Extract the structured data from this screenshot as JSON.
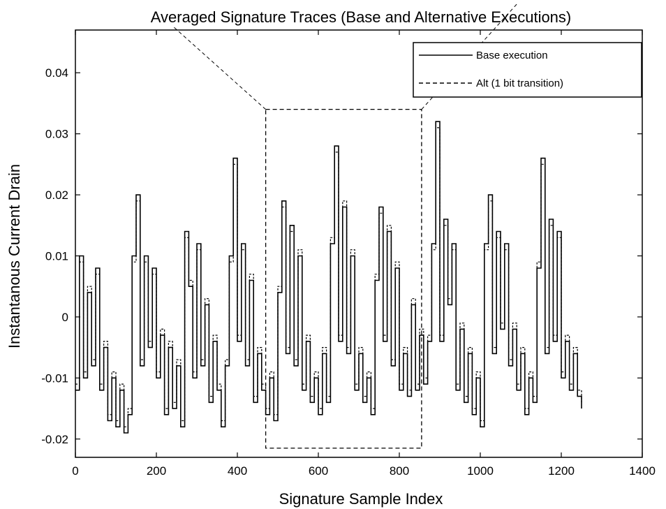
{
  "chart_data": {
    "type": "line",
    "title": "Averaged Signature Traces (Base and Alternative Executions)",
    "xlabel": "Signature Sample Index",
    "ylabel": "Instantanous Current Drain",
    "xlim": [
      0,
      1400
    ],
    "ylim": [
      -0.023,
      0.047
    ],
    "xticks": [
      0,
      200,
      400,
      600,
      800,
      1000,
      1200,
      1400
    ],
    "xtick_labels": [
      "0",
      "200",
      "400",
      "600",
      "800",
      "1000",
      "1200",
      "1400"
    ],
    "yticks": [
      -0.02,
      -0.01,
      0,
      0.01,
      0.02,
      0.03,
      0.04
    ],
    "ytick_labels": [
      "-0.02",
      "-0.01",
      "0",
      "0.01",
      "0.02",
      "0.03",
      "0.04"
    ],
    "grid": false,
    "legend_position": "top-right",
    "highlight_box": {
      "x": [
        470,
        855
      ],
      "y": [
        -0.0215,
        0.034
      ]
    },
    "series": [
      {
        "name": "Base execution",
        "style": "solid",
        "x": [
          0,
          10,
          20,
          30,
          40,
          50,
          60,
          70,
          80,
          90,
          100,
          110,
          120,
          130,
          140,
          150,
          160,
          170,
          180,
          190,
          200,
          210,
          220,
          230,
          240,
          250,
          260,
          270,
          280,
          290,
          300,
          310,
          320,
          330,
          340,
          350,
          360,
          370,
          380,
          390,
          400,
          410,
          420,
          430,
          440,
          450,
          460,
          470,
          480,
          490,
          500,
          510,
          520,
          530,
          540,
          550,
          560,
          570,
          580,
          590,
          600,
          610,
          620,
          630,
          640,
          650,
          660,
          670,
          680,
          690,
          700,
          710,
          720,
          730,
          740,
          750,
          760,
          770,
          780,
          790,
          800,
          810,
          820,
          830,
          840,
          850,
          860,
          870,
          880,
          890,
          900,
          910,
          920,
          930,
          940,
          950,
          960,
          970,
          980,
          990,
          1000,
          1010,
          1020,
          1030,
          1040,
          1050,
          1060,
          1070,
          1080,
          1090,
          1100,
          1110,
          1120,
          1130,
          1140,
          1150,
          1160,
          1170,
          1180,
          1190,
          1200,
          1210,
          1220,
          1230,
          1240,
          1250
        ],
        "values": [
          -0.012,
          0.01,
          -0.01,
          0.004,
          -0.008,
          0.008,
          -0.012,
          -0.005,
          -0.017,
          -0.01,
          -0.018,
          -0.012,
          -0.019,
          -0.016,
          0.01,
          0.02,
          -0.008,
          0.01,
          -0.005,
          0.008,
          -0.01,
          -0.003,
          -0.016,
          -0.005,
          -0.015,
          -0.008,
          -0.018,
          0.014,
          0.005,
          -0.01,
          0.012,
          -0.008,
          0.002,
          -0.014,
          -0.004,
          -0.012,
          -0.018,
          -0.008,
          0.01,
          0.026,
          -0.004,
          0.012,
          -0.008,
          0.006,
          -0.014,
          -0.006,
          -0.012,
          -0.016,
          -0.01,
          -0.017,
          0.004,
          0.019,
          -0.006,
          0.015,
          -0.008,
          0.01,
          -0.012,
          -0.004,
          -0.014,
          -0.01,
          -0.016,
          -0.006,
          -0.014,
          0.012,
          0.028,
          -0.004,
          0.018,
          -0.006,
          0.01,
          -0.012,
          -0.006,
          -0.014,
          -0.01,
          -0.016,
          0.006,
          0.018,
          -0.004,
          0.014,
          -0.008,
          0.008,
          -0.012,
          -0.006,
          -0.013,
          0.002,
          -0.012,
          -0.003,
          -0.011,
          -0.004,
          0.012,
          0.032,
          -0.004,
          0.016,
          0.002,
          0.012,
          -0.012,
          -0.002,
          -0.014,
          -0.006,
          -0.016,
          -0.01,
          -0.018,
          0.012,
          0.02,
          -0.006,
          0.014,
          -0.002,
          0.012,
          -0.008,
          -0.002,
          -0.012,
          -0.006,
          -0.016,
          -0.01,
          -0.014,
          0.008,
          0.026,
          -0.006,
          0.016,
          -0.004,
          0.014,
          -0.01,
          -0.004,
          -0.012,
          -0.006,
          -0.013,
          -0.015
        ]
      },
      {
        "name": "Alt (1 bit transition)",
        "style": "dashed",
        "x": [
          0,
          10,
          20,
          30,
          40,
          50,
          60,
          70,
          80,
          90,
          100,
          110,
          120,
          130,
          140,
          150,
          160,
          170,
          180,
          190,
          200,
          210,
          220,
          230,
          240,
          250,
          260,
          270,
          280,
          290,
          300,
          310,
          320,
          330,
          340,
          350,
          360,
          370,
          380,
          390,
          400,
          410,
          420,
          430,
          440,
          450,
          460,
          470,
          480,
          490,
          500,
          510,
          520,
          530,
          540,
          550,
          560,
          570,
          580,
          590,
          600,
          610,
          620,
          630,
          640,
          650,
          660,
          670,
          680,
          690,
          700,
          710,
          720,
          730,
          740,
          750,
          760,
          770,
          780,
          790,
          800,
          810,
          820,
          830,
          840,
          850,
          860,
          870,
          880,
          890,
          900,
          910,
          920,
          930,
          940,
          950,
          960,
          970,
          980,
          990,
          1000,
          1010,
          1020,
          1030,
          1040,
          1050,
          1060,
          1070,
          1080,
          1090,
          1100,
          1110,
          1120,
          1130,
          1140,
          1150,
          1160,
          1170,
          1180,
          1190,
          1200,
          1210,
          1220,
          1230,
          1240,
          1250
        ],
        "values": [
          -0.011,
          0.009,
          -0.009,
          0.005,
          -0.007,
          0.007,
          -0.011,
          -0.004,
          -0.016,
          -0.009,
          -0.017,
          -0.011,
          -0.018,
          -0.015,
          0.009,
          0.019,
          -0.007,
          0.009,
          -0.004,
          0.007,
          -0.009,
          -0.002,
          -0.015,
          -0.004,
          -0.014,
          -0.007,
          -0.017,
          0.013,
          0.006,
          -0.009,
          0.011,
          -0.007,
          0.003,
          -0.013,
          -0.003,
          -0.011,
          -0.017,
          -0.007,
          0.009,
          0.025,
          -0.003,
          0.011,
          -0.007,
          0.007,
          -0.013,
          -0.005,
          -0.011,
          -0.015,
          -0.009,
          -0.016,
          0.005,
          0.018,
          -0.005,
          0.014,
          -0.007,
          0.011,
          -0.011,
          -0.003,
          -0.013,
          -0.009,
          -0.015,
          -0.005,
          -0.013,
          0.013,
          0.027,
          -0.003,
          0.019,
          -0.005,
          0.011,
          -0.011,
          -0.005,
          -0.013,
          -0.009,
          -0.015,
          0.007,
          0.017,
          -0.003,
          0.015,
          -0.007,
          0.009,
          -0.011,
          -0.005,
          -0.012,
          0.003,
          -0.011,
          -0.002,
          -0.01,
          -0.003,
          0.011,
          0.031,
          -0.003,
          0.015,
          0.003,
          0.011,
          -0.011,
          -0.001,
          -0.013,
          -0.005,
          -0.015,
          -0.009,
          -0.017,
          0.011,
          0.019,
          -0.005,
          0.013,
          -0.001,
          0.011,
          -0.007,
          -0.001,
          -0.011,
          -0.005,
          -0.015,
          -0.009,
          -0.013,
          0.009,
          0.025,
          -0.005,
          0.015,
          -0.003,
          0.013,
          -0.009,
          -0.003,
          -0.011,
          -0.005,
          -0.012,
          -0.014
        ]
      }
    ]
  }
}
